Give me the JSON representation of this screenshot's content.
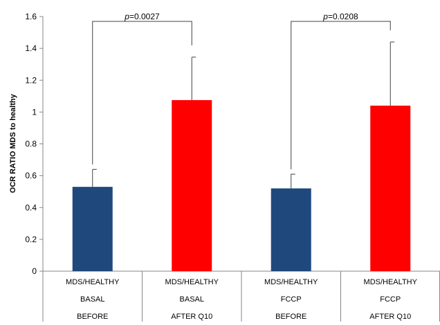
{
  "chart_data": {
    "type": "bar",
    "ylabel": "OCR RATIO MDS to healthy",
    "ylim": [
      0,
      1.6
    ],
    "yticks": [
      0,
      0.2,
      0.4,
      0.6,
      0.8,
      1,
      1.2,
      1.4,
      1.6
    ],
    "ytick_labels": [
      "0",
      "0.2",
      "0.4",
      "0.6",
      "0.8",
      "1",
      "1.2",
      "1.4",
      "1.6"
    ],
    "grid": false,
    "categories": [
      [
        "MDS/HEALTHY",
        "BASAL",
        "BEFORE"
      ],
      [
        "MDS/HEALTHY",
        "BASAL",
        "AFTER Q10"
      ],
      [
        "MDS/HEALTHY",
        "FCCP",
        "BEFORE"
      ],
      [
        "MDS/HEALTHY",
        "FCCP",
        "AFTER Q10"
      ]
    ],
    "values": [
      0.53,
      1.075,
      0.52,
      1.04
    ],
    "errors": [
      0.11,
      0.27,
      0.09,
      0.4
    ],
    "colors": [
      "#1f497d",
      "#ff0000",
      "#1f497d",
      "#ff0000"
    ],
    "annotations": [
      {
        "from": 0,
        "to": 1,
        "p_prefix": "p",
        "p_value": "=0.0027"
      },
      {
        "from": 2,
        "to": 3,
        "p_prefix": "p",
        "p_value": "=0.0208"
      }
    ]
  }
}
